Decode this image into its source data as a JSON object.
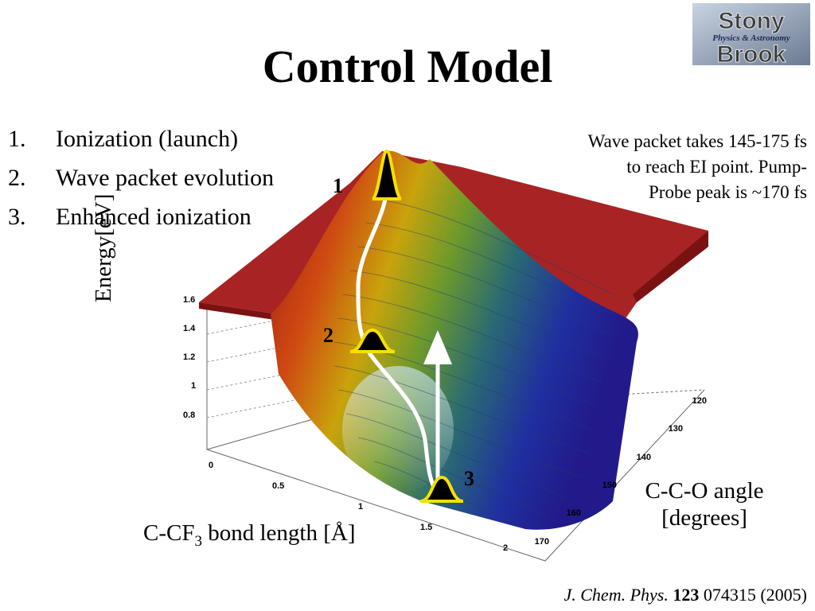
{
  "title": "Control Model",
  "list": [
    {
      "num": "1.",
      "text": "Ionization (launch)"
    },
    {
      "num": "2.",
      "text": "Wave packet evolution"
    },
    {
      "num": "3.",
      "text": "Enhanced ionization"
    }
  ],
  "note": {
    "line1": "Wave packet takes 145-175 fs",
    "line2": "to reach EI point.  Pump-",
    "line3": "Probe peak is ~170 fs"
  },
  "plot": {
    "y_label": "Energy[eV]",
    "y_ticks": [
      "1.6",
      "1.4",
      "1.2",
      "1",
      "0.8"
    ],
    "x_label_prefix": "C-CF",
    "x_label_sub": "3",
    "x_label_suffix": " bond length [Å]",
    "x_ticks": [
      "0",
      "0.5",
      "1",
      "1.5",
      "2"
    ],
    "z_label_line1": "C-C-O angle",
    "z_label_line2": "[degrees]",
    "z_ticks": [
      "120",
      "130",
      "140",
      "150",
      "160",
      "170"
    ],
    "markers": [
      "1",
      "2",
      "3"
    ]
  },
  "logo_text": {
    "top": "Stony",
    "middle": "Physics & Astronomy",
    "bottom": "Brook"
  },
  "citation": {
    "journal": "J. Chem. Phys.",
    "volume": "123",
    "rest": " 074315 (2005)"
  }
}
